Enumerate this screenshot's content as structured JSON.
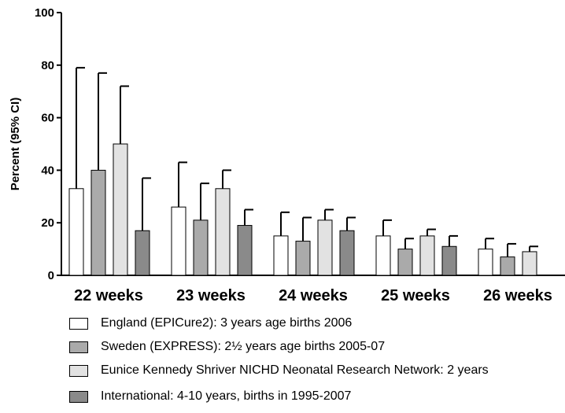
{
  "chart_data": {
    "type": "bar",
    "categories": [
      "22 weeks",
      "23 weeks",
      "24 weeks",
      "25 weeks",
      "26 weeks"
    ],
    "ylabel": "Percent (95% CI)",
    "ylim": [
      0,
      100
    ],
    "yticks": [
      "0",
      "20",
      "40",
      "60",
      "80",
      "100"
    ],
    "grid": false,
    "legend_position": "bottom",
    "series": [
      {
        "name": "England (EPICure2): 3 years age births 2006",
        "color": "#ffffff",
        "values": [
          33,
          26,
          15,
          15,
          10
        ],
        "ci_upper": [
          79,
          43,
          24,
          21,
          14
        ]
      },
      {
        "name": "Sweden (EXPRESS): 2½ years age  births 2005-07",
        "color": "#aaaaaa",
        "values": [
          40,
          21,
          13,
          10,
          7
        ],
        "ci_upper": [
          77,
          35,
          22,
          14,
          12
        ]
      },
      {
        "name": "Eunice Kennedy Shriver NICHD Neonatal Research Network: 2 years",
        "color": "#e2e2e2",
        "values": [
          50,
          33,
          21,
          15,
          9
        ],
        "ci_upper": [
          72,
          40,
          25,
          17.5,
          11
        ]
      },
      {
        "name": "International: 4-10 years, births in 1995-2007",
        "color": "#8a8a8a",
        "values": [
          17,
          19,
          17,
          11,
          null
        ],
        "ci_upper": [
          37,
          25,
          22,
          15,
          null
        ]
      }
    ]
  }
}
